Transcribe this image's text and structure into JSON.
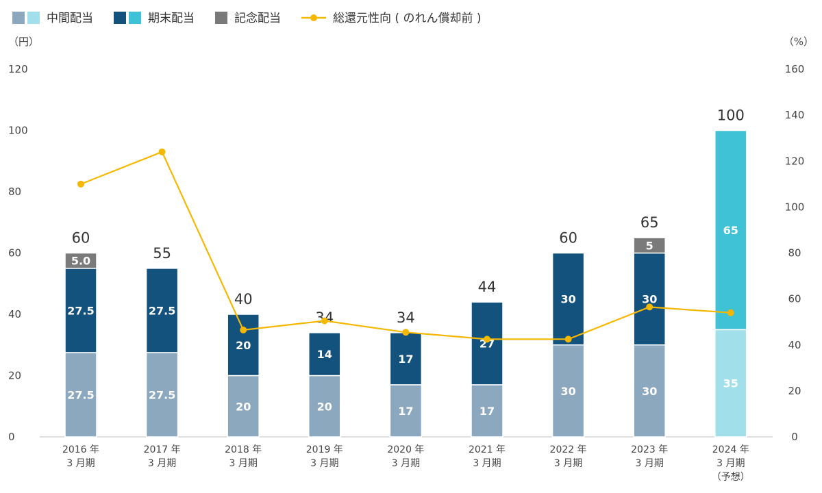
{
  "chart_data": {
    "type": "bar",
    "stacked": true,
    "legend": {
      "position": "top-left",
      "items": [
        {
          "key": "interim",
          "label": "中間配当",
          "colors": [
            "#8ba8bf",
            "#a1e0ea"
          ]
        },
        {
          "key": "final",
          "label": "期末配当",
          "colors": [
            "#14527e",
            "#3fc1d6"
          ]
        },
        {
          "key": "commemorative",
          "label": "記念配当",
          "colors": [
            "#7a7a7a"
          ]
        },
        {
          "key": "payout",
          "label": "総還元性向 ( のれん償却前 )",
          "colors": [
            "#f5b800"
          ]
        }
      ]
    },
    "left_unit": "（円）",
    "right_unit": "（%）",
    "y_left": {
      "min": 0,
      "max": 120,
      "ticks": [
        "0",
        "20",
        "40",
        "60",
        "80",
        "100",
        "120"
      ]
    },
    "y_right": {
      "min": 0,
      "max": 160,
      "ticks": [
        "0",
        "20",
        "40",
        "60",
        "80",
        "100",
        "120",
        "140",
        "160"
      ]
    },
    "grid": false,
    "categories": [
      {
        "line1": "2016 年",
        "line2": "3 月期",
        "line3": ""
      },
      {
        "line1": "2017 年",
        "line2": "3 月期",
        "line3": ""
      },
      {
        "line1": "2018 年",
        "line2": "3 月期",
        "line3": ""
      },
      {
        "line1": "2019 年",
        "line2": "3 月期",
        "line3": ""
      },
      {
        "line1": "2020 年",
        "line2": "3 月期",
        "line3": ""
      },
      {
        "line1": "2021 年",
        "line2": "3 月期",
        "line3": ""
      },
      {
        "line1": "2022 年",
        "line2": "3 月期",
        "line3": ""
      },
      {
        "line1": "2023 年",
        "line2": "3 月期",
        "line3": ""
      },
      {
        "line1": "2024 年",
        "line2": "3 月期",
        "line3": "（予想）"
      }
    ],
    "forecast_flags": [
      false,
      false,
      false,
      false,
      false,
      false,
      false,
      false,
      true
    ],
    "series": [
      {
        "key": "interim",
        "name": "中間配当",
        "values": [
          27.5,
          27.5,
          20,
          20,
          17,
          17,
          30,
          30,
          35
        ],
        "labels": [
          "27.5",
          "27.5",
          "20",
          "20",
          "17",
          "17",
          "30",
          "30",
          "35"
        ]
      },
      {
        "key": "final",
        "name": "期末配当",
        "values": [
          27.5,
          27.5,
          20,
          14,
          17,
          27,
          30,
          30,
          65
        ],
        "labels": [
          "27.5",
          "27.5",
          "20",
          "14",
          "17",
          "27",
          "30",
          "30",
          "65"
        ]
      },
      {
        "key": "commemorative",
        "name": "記念配当",
        "values": [
          5,
          0,
          0,
          0,
          0,
          0,
          0,
          5,
          0
        ],
        "labels": [
          "5.0",
          "",
          "",
          "",
          "",
          "",
          "",
          "5",
          ""
        ]
      }
    ],
    "totals": [
      "60",
      "55",
      "40",
      "34",
      "34",
      "44",
      "60",
      "65",
      "100"
    ],
    "total_values": [
      60,
      55,
      40,
      34,
      34,
      44,
      60,
      65,
      100
    ],
    "line": {
      "key": "payout",
      "name": "総還元性向 ( のれん償却前 )",
      "axis": "right",
      "values": [
        110,
        124,
        46.5,
        50.5,
        45.5,
        42.5,
        42.5,
        56.5,
        54
      ]
    }
  }
}
